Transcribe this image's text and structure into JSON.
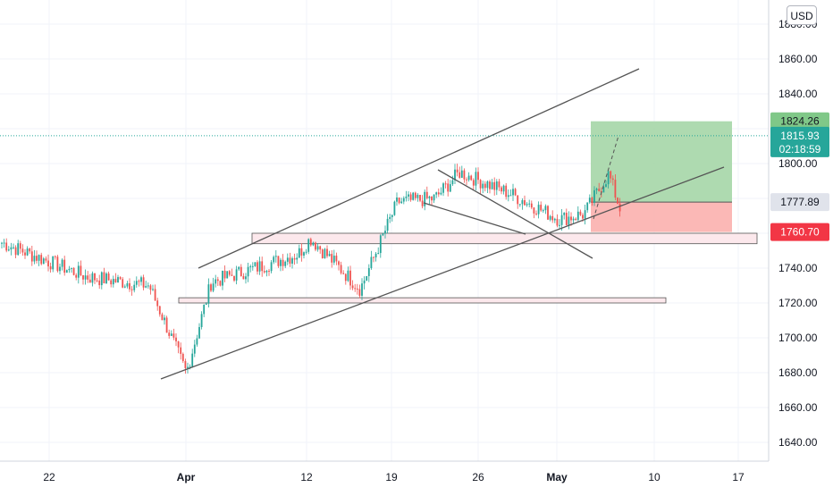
{
  "currency_button": "USD",
  "colors": {
    "up": "#26a69a",
    "down": "#ef5350",
    "grid": "#f0f3fa",
    "axis_text": "#131722",
    "trend_line": "#555555",
    "profit_zone": "#a5d6a7",
    "loss_zone": "#fbb0ae",
    "zone_box": "#fce8ec",
    "price_line": "#26a69a"
  },
  "chart_data": {
    "type": "candlestick",
    "title": "",
    "currency": "USD",
    "x_tick_labels": [
      "22",
      "Apr",
      "12",
      "19",
      "26",
      "May",
      "10",
      "17"
    ],
    "y_tick_labels": [
      1640,
      1660,
      1680,
      1700,
      1720,
      1740,
      1760,
      1780,
      1800,
      1820,
      1840,
      1860,
      1880
    ],
    "ylim": [
      1630,
      1888
    ],
    "grid": true,
    "price_badges": [
      {
        "label": "1824.26",
        "sub": "",
        "color": "#80c888",
        "text_color": "#131722",
        "price": 1824.26
      },
      {
        "label": "1815.93",
        "sub": "02:18:59",
        "color": "#26a69a",
        "text_color": "#ffffff",
        "price": 1815.93
      },
      {
        "label": "1777.89",
        "sub": "",
        "color": "#e0e3eb",
        "text_color": "#131722",
        "price": 1777.89
      },
      {
        "label": "1760.70",
        "sub": "",
        "color": "#f23645",
        "text_color": "#ffffff",
        "price": 1760.7
      }
    ],
    "last_price": 1815.93,
    "position": {
      "entry": 1777.89,
      "target": 1824.26,
      "stop": 1760.7
    },
    "candles_summary": [
      {
        "date": "Mar 15",
        "price": 1755
      },
      {
        "date": "Mar 22",
        "price": 1735
      },
      {
        "date": "Mar 27",
        "price": 1730
      },
      {
        "date": "Mar 30",
        "price": 1680
      },
      {
        "date": "Apr 1",
        "price": 1732
      },
      {
        "date": "Apr 8",
        "price": 1748
      },
      {
        "date": "Apr 9",
        "price": 1757
      },
      {
        "date": "Apr 13",
        "price": 1728
      },
      {
        "date": "Apr 16",
        "price": 1778
      },
      {
        "date": "Apr 19",
        "price": 1780
      },
      {
        "date": "Apr 21",
        "price": 1795
      },
      {
        "date": "Apr 25",
        "price": 1783
      },
      {
        "date": "Apr 29",
        "price": 1768
      },
      {
        "date": "May 1",
        "price": 1771
      },
      {
        "date": "May 3",
        "price": 1794
      },
      {
        "date": "May 4",
        "price": 1772
      },
      {
        "date": "May 6",
        "price": 1815
      }
    ]
  }
}
